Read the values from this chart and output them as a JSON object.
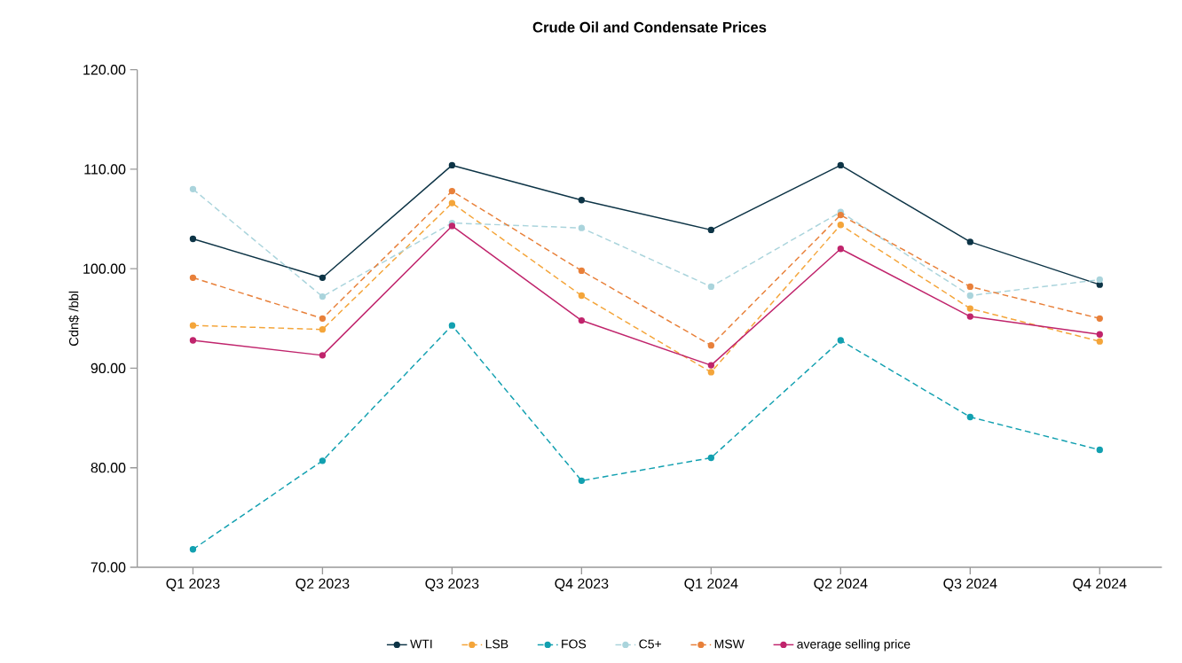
{
  "chart_data": {
    "type": "line",
    "title": "Crude Oil and Condensate Prices",
    "ylabel": "Cdn$ /bbl",
    "categories": [
      "Q1 2023",
      "Q2 2023",
      "Q3 2023",
      "Q4 2023",
      "Q1 2024",
      "Q2 2024",
      "Q3 2024",
      "Q4 2024"
    ],
    "ylim": [
      70,
      120
    ],
    "yticks": [
      {
        "value": 70,
        "label": "70.00"
      },
      {
        "value": 80,
        "label": "80.00"
      },
      {
        "value": 90,
        "label": "90.00"
      },
      {
        "value": 100,
        "label": "100.00"
      },
      {
        "value": 110,
        "label": "110.00"
      },
      {
        "value": 120,
        "label": "120.00"
      }
    ],
    "grid": false,
    "legend": "bottom",
    "marker": "circle",
    "series": [
      {
        "name": "WTI",
        "color": "#0d3446",
        "line_style": "solid",
        "values": [
          103.0,
          99.1,
          110.4,
          106.9,
          103.9,
          110.4,
          102.7,
          98.4
        ]
      },
      {
        "name": "LSB",
        "color": "#f4a53a",
        "line_style": "dashed",
        "values": [
          94.3,
          93.9,
          106.6,
          97.3,
          89.6,
          104.4,
          96.0,
          92.7
        ]
      },
      {
        "name": "FOS",
        "color": "#12a0b0",
        "line_style": "dashed",
        "values": [
          71.8,
          80.7,
          94.3,
          78.7,
          81.0,
          92.8,
          85.1,
          81.8
        ]
      },
      {
        "name": "C5+",
        "color": "#aad4dc",
        "line_style": "dashed",
        "values": [
          108.0,
          97.2,
          104.6,
          104.1,
          98.2,
          105.7,
          97.3,
          98.9
        ]
      },
      {
        "name": "MSW",
        "color": "#e8803a",
        "line_style": "dashed",
        "values": [
          99.1,
          95.0,
          107.8,
          99.8,
          92.3,
          105.4,
          98.2,
          95.0
        ]
      },
      {
        "name": "average selling price",
        "color": "#c0246c",
        "line_style": "solid",
        "values": [
          92.8,
          91.3,
          104.3,
          94.8,
          90.3,
          102.0,
          95.2,
          93.4
        ]
      }
    ]
  }
}
